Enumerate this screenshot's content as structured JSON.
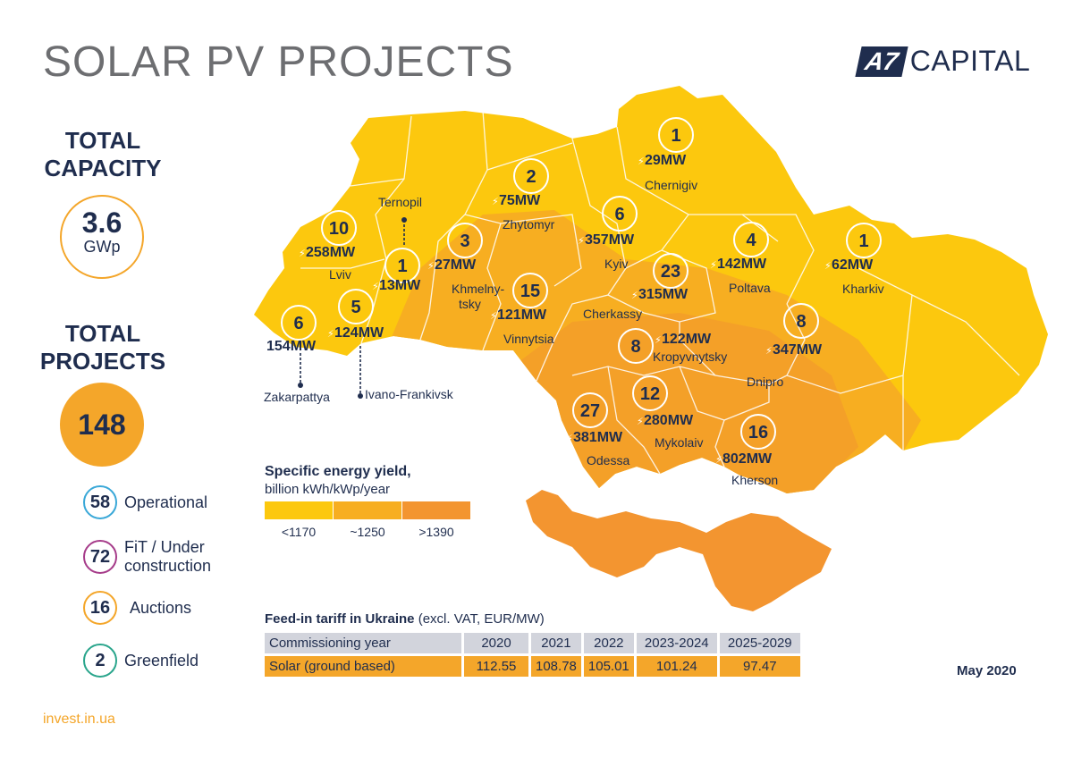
{
  "title": "SOLAR PV PROJECTS",
  "logo": {
    "mark": "A7",
    "text": "CAPITAL",
    "color": "#1f2d4e"
  },
  "capacity": {
    "heading_line1": "TOTAL",
    "heading_line2": "CAPACITY",
    "value": "3.6",
    "unit": "GWp"
  },
  "projects": {
    "heading_line1": "TOTAL",
    "heading_line2": "PROJECTS",
    "value": "148",
    "statuses": [
      {
        "count": "58",
        "label_line1": "Operational",
        "label_line2": "",
        "color": "#3aa8d8"
      },
      {
        "count": "72",
        "label_line1": "FiT / Under",
        "label_line2": "construction",
        "color": "#a63c8a"
      },
      {
        "count": "16",
        "label_line1": "Auctions",
        "label_line2": "",
        "color": "#f4a62a"
      },
      {
        "count": "2",
        "label_line1": "Greenfield",
        "label_line2": "",
        "color": "#2aa58c"
      }
    ]
  },
  "regions": [
    {
      "name": "Lviv",
      "count": "10",
      "mw": "258MW"
    },
    {
      "name": "Ternopil",
      "count": "1",
      "mw": "13MW"
    },
    {
      "name": "Khmelny-",
      "name2": "tsky",
      "count": "3",
      "mw": "27MW"
    },
    {
      "name": "Zhytomyr",
      "count": "2",
      "mw": "75MW"
    },
    {
      "name": "Kyiv",
      "count": "6",
      "mw": "357MW"
    },
    {
      "name": "Chernigiv",
      "count": "1",
      "mw": "29MW"
    },
    {
      "name": "Poltava",
      "count": "4",
      "mw": "142MW"
    },
    {
      "name": "Kharkiv",
      "count": "1",
      "mw": "62MW"
    },
    {
      "name": "Cherkassy",
      "count": "23",
      "mw": "315MW"
    },
    {
      "name": "Vinnytsia",
      "count": "15",
      "mw": "121MW"
    },
    {
      "name": "Zakarpattya",
      "count": "6",
      "mw": "154MW"
    },
    {
      "name": "Ivano-Frankivsk",
      "count": "5",
      "mw": "124MW"
    },
    {
      "name": "Kropyvnytsky",
      "count": "8",
      "mw": "122MW"
    },
    {
      "name": "Dnipro",
      "count": "8",
      "mw": "347MW"
    },
    {
      "name": "Odessa",
      "count": "27",
      "mw": "381MW"
    },
    {
      "name": "Mykolaiv",
      "count": "12",
      "mw": "280MW"
    },
    {
      "name": "Kherson",
      "count": "16",
      "mw": "802MW"
    }
  ],
  "legend": {
    "title": "Specific energy yield,",
    "subtitle": "billion kWh/kWp/year",
    "items": [
      {
        "label": "<1170",
        "color": "#fcc80e"
      },
      {
        "label": "~1250",
        "color": "#f7ae21"
      },
      {
        "label": ">1390",
        "color": "#f39530"
      }
    ]
  },
  "fit": {
    "title_bold": "Feed-in tariff in Ukraine",
    "title_rest": " (excl. VAT, EUR/MW)",
    "header": [
      "Commissioning year",
      "2020",
      "2021",
      "2022",
      "2023-2024",
      "2025-2029"
    ],
    "row": [
      "Solar (ground based)",
      "112.55",
      "108.78",
      "105.01",
      "101.24",
      "97.47"
    ]
  },
  "date": "May 2020",
  "site": "invest.in.ua"
}
